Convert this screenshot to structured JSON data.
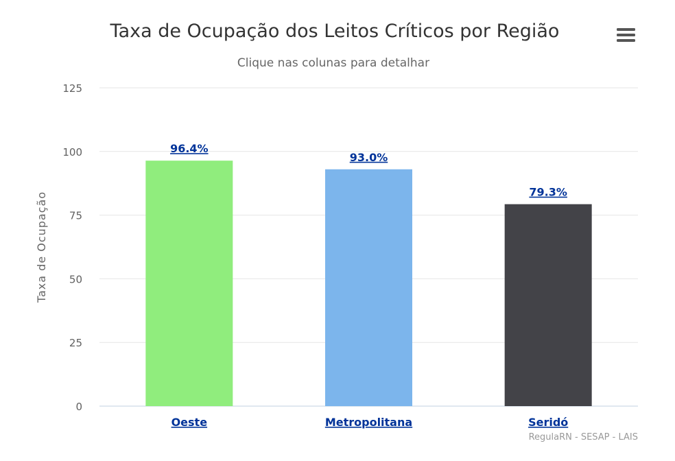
{
  "chart_data": {
    "type": "bar",
    "title": "Taxa de Ocupação dos Leitos Críticos por Região",
    "subtitle": "Clique nas colunas para detalhar",
    "xlabel": "",
    "ylabel": "Taxa de Ocupação",
    "ylim": [
      0,
      125
    ],
    "yticks": [
      0,
      25,
      50,
      75,
      100,
      125
    ],
    "grid": true,
    "legend": "none",
    "categories": [
      "Oeste",
      "Metropolitana",
      "Seridó"
    ],
    "values": [
      96.4,
      93.0,
      79.3
    ],
    "data_labels": [
      "96.4%",
      "93.0%",
      "79.3%"
    ],
    "colors": [
      "#90ed7d",
      "#7cb5ec",
      "#434348"
    ],
    "credits": "RegulaRN - SESAP - LAIS"
  },
  "menu": {
    "icon": "hamburger-menu-icon"
  }
}
